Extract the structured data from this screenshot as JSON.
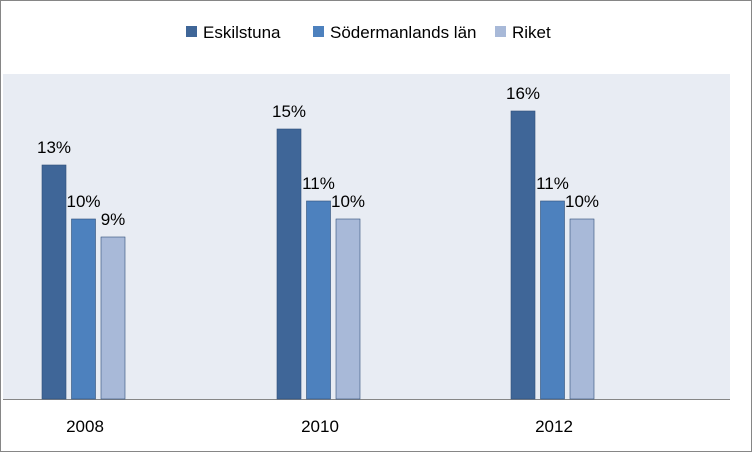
{
  "chart_data": {
    "type": "bar",
    "categories": [
      "2008",
      "2010",
      "2012"
    ],
    "series": [
      {
        "name": "Eskilstuna",
        "values": [
          13,
          15,
          16
        ],
        "labels": [
          "13%",
          "15%",
          "16%"
        ],
        "color": "#3F6698"
      },
      {
        "name": "Södermanlands län",
        "values": [
          10,
          11,
          11
        ],
        "labels": [
          "10%",
          "11%",
          "11%"
        ],
        "color": "#4D81BE"
      },
      {
        "name": "Riket",
        "values": [
          9,
          10,
          10
        ],
        "labels": [
          "9%",
          "10%",
          "10%"
        ],
        "color": "#A8B9D8"
      }
    ],
    "title": "",
    "xlabel": "",
    "ylabel": "",
    "ylim": [
      0,
      17
    ],
    "grid": false,
    "legend": "top-center",
    "plot_background": "#E8ECF3"
  }
}
